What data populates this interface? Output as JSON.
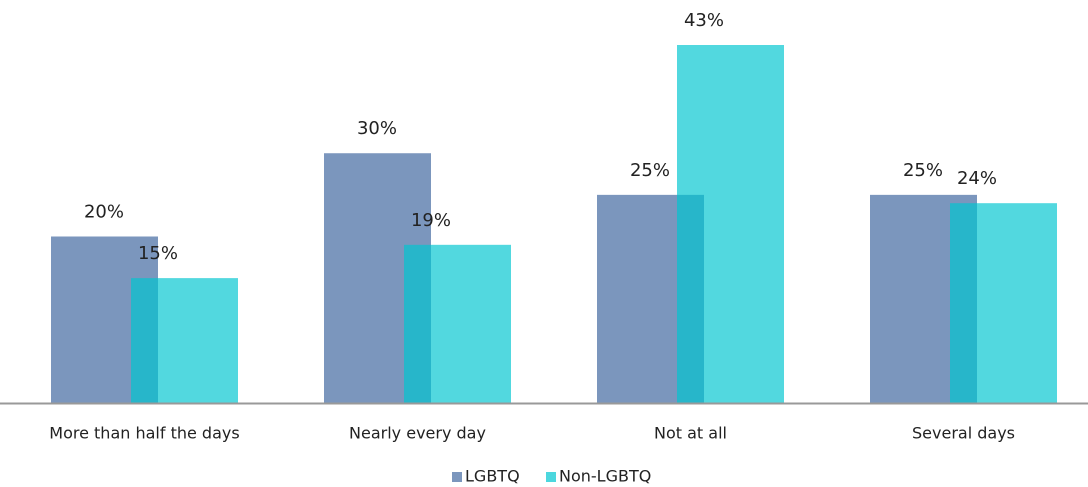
{
  "chart_data": {
    "type": "bar",
    "categories": [
      "More than half the days",
      "Nearly every day",
      "Not at all",
      "Several days"
    ],
    "series": [
      {
        "name": "LGBTQ",
        "color": "#7b96bd",
        "values": [
          20,
          30,
          25,
          25
        ],
        "value_labels": [
          "20%",
          "30%",
          "25%",
          "25%"
        ]
      },
      {
        "name": "Non-LGBTQ",
        "color": "#00c6d0",
        "values": [
          15,
          19,
          43,
          24
        ],
        "value_labels": [
          "15%",
          "19%",
          "43%",
          "24%"
        ]
      }
    ],
    "legend": "bottom"
  }
}
